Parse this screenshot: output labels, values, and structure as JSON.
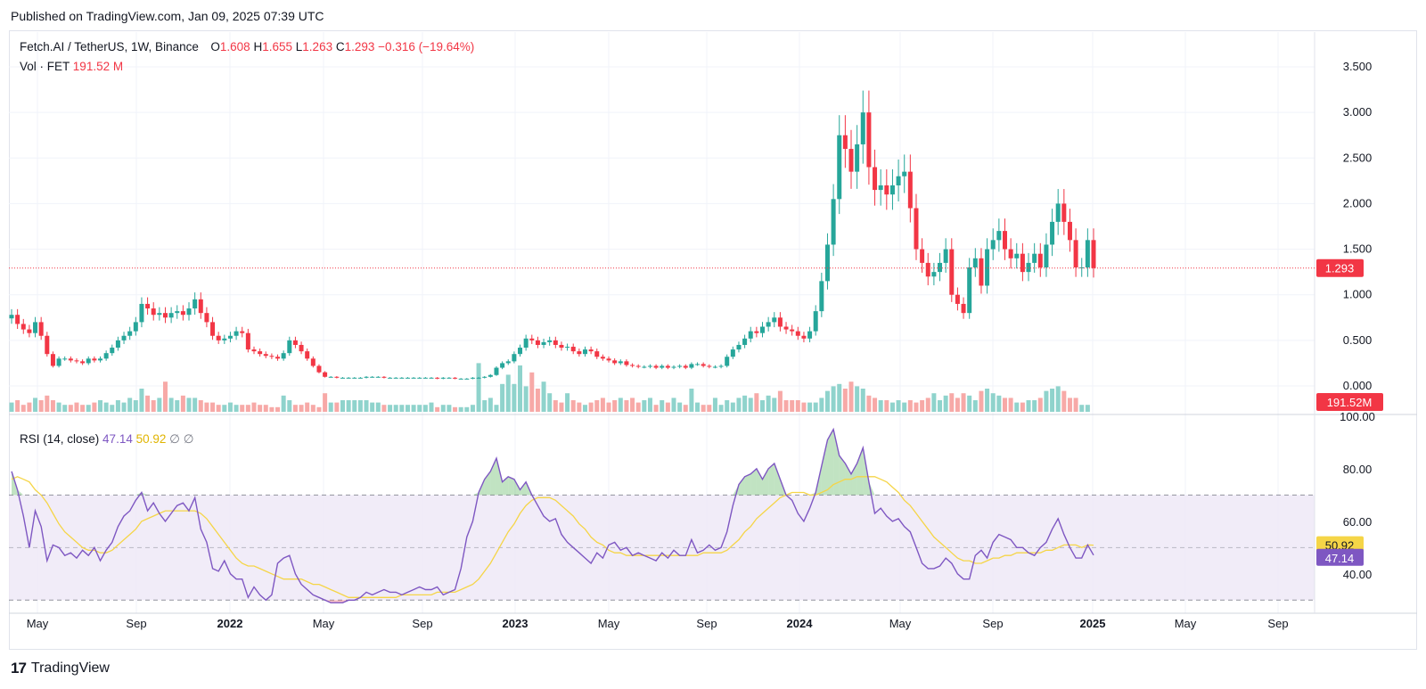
{
  "header": {
    "published": "Published on TradingView.com, Jan 09, 2025 07:39 UTC"
  },
  "legend": {
    "symbol": "Fetch.AI / TetherUS, 1W, Binance",
    "o_label": "O",
    "o": "1.608",
    "h_label": "H",
    "h": "1.655",
    "l_label": "L",
    "l": "1.263",
    "c_label": "C",
    "c": "1.293",
    "change": "−0.316 (−19.64%)",
    "vol_label": "Vol · FET",
    "vol": "191.52 M",
    "rsi_label": "RSI (14, close)",
    "rsi": "47.14",
    "rsi_ma": "50.92",
    "rsi_x1": "∅",
    "rsi_x2": "∅"
  },
  "footer": {
    "brand": "TradingView"
  },
  "colors": {
    "up": "#26a69a",
    "down": "#f23645",
    "up_vol": "#8fd3cc",
    "down_vol": "#f7a9a7",
    "rsi": "#7e57c2",
    "rsi_ma": "#f5d547",
    "band": "#ede7f6"
  },
  "chart_data": [
    {
      "type": "candlestick",
      "title": "Fetch.AI / TetherUS, 1W, Binance",
      "x_start": "2021-03-29",
      "interval_days": 7,
      "ylim": [
        0,
        3.5
      ],
      "y_ticks": [
        "3.500",
        "3.000",
        "2.500",
        "2.000",
        "1.500",
        "1.000",
        "0.500",
        "0.000"
      ],
      "x_ticks": [
        "May",
        "Sep",
        "2022",
        "May",
        "Sep",
        "2023",
        "May",
        "Sep",
        "2024",
        "May",
        "Sep",
        "2025",
        "May",
        "Sep"
      ],
      "last_price": "1.293",
      "close": [
        0.78,
        0.68,
        0.62,
        0.58,
        0.7,
        0.55,
        0.35,
        0.22,
        0.3,
        0.3,
        0.28,
        0.27,
        0.25,
        0.3,
        0.28,
        0.3,
        0.36,
        0.42,
        0.5,
        0.55,
        0.6,
        0.7,
        0.9,
        0.85,
        0.78,
        0.8,
        0.75,
        0.8,
        0.82,
        0.78,
        0.85,
        0.95,
        0.8,
        0.7,
        0.55,
        0.5,
        0.52,
        0.55,
        0.6,
        0.58,
        0.4,
        0.38,
        0.35,
        0.33,
        0.32,
        0.3,
        0.36,
        0.5,
        0.45,
        0.38,
        0.3,
        0.22,
        0.15,
        0.1,
        0.1,
        0.09,
        0.09,
        0.09,
        0.09,
        0.09,
        0.1,
        0.1,
        0.1,
        0.09,
        0.09,
        0.09,
        0.09,
        0.09,
        0.09,
        0.09,
        0.09,
        0.09,
        0.08,
        0.09,
        0.09,
        0.08,
        0.08,
        0.08,
        0.09,
        0.09,
        0.1,
        0.12,
        0.2,
        0.25,
        0.27,
        0.35,
        0.42,
        0.52,
        0.5,
        0.45,
        0.48,
        0.5,
        0.45,
        0.42,
        0.43,
        0.38,
        0.35,
        0.4,
        0.38,
        0.32,
        0.3,
        0.28,
        0.25,
        0.27,
        0.23,
        0.22,
        0.21,
        0.21,
        0.22,
        0.2,
        0.22,
        0.2,
        0.21,
        0.22,
        0.2,
        0.24,
        0.24,
        0.22,
        0.21,
        0.21,
        0.22,
        0.32,
        0.4,
        0.45,
        0.52,
        0.6,
        0.58,
        0.65,
        0.7,
        0.75,
        0.65,
        0.62,
        0.6,
        0.55,
        0.52,
        0.6,
        0.82,
        1.15,
        1.55,
        2.05,
        2.75,
        2.6,
        2.35,
        2.65,
        3.0,
        2.4,
        2.15,
        2.2,
        2.1,
        2.2,
        2.3,
        2.35,
        1.95,
        1.5,
        1.35,
        1.2,
        1.25,
        1.35,
        1.5,
        1.0,
        0.9,
        0.8,
        1.3,
        1.4,
        1.1,
        1.5,
        1.6,
        1.7,
        1.5,
        1.4,
        1.45,
        1.25,
        1.35,
        1.45,
        1.3,
        1.55,
        1.8,
        2.0,
        1.8,
        1.6,
        1.3,
        1.3,
        1.6,
        1.293
      ]
    },
    {
      "type": "bar",
      "title": "Vol · FET",
      "last_value": "191.52M",
      "values": [
        0.4,
        0.5,
        0.3,
        0.4,
        0.6,
        0.5,
        0.7,
        0.5,
        0.4,
        0.3,
        0.3,
        0.4,
        0.3,
        0.3,
        0.4,
        0.5,
        0.4,
        0.3,
        0.5,
        0.4,
        0.6,
        0.5,
        1.0,
        0.7,
        0.5,
        0.6,
        1.3,
        0.6,
        0.5,
        0.7,
        0.6,
        0.6,
        0.5,
        0.4,
        0.4,
        0.3,
        0.3,
        0.4,
        0.3,
        0.3,
        0.3,
        0.4,
        0.3,
        0.3,
        0.2,
        0.2,
        0.7,
        0.5,
        0.3,
        0.3,
        0.4,
        0.3,
        0.2,
        0.8,
        0.4,
        0.4,
        0.5,
        0.5,
        0.5,
        0.5,
        0.5,
        0.4,
        0.4,
        0.3,
        0.3,
        0.3,
        0.3,
        0.3,
        0.3,
        0.3,
        0.3,
        0.4,
        0.2,
        0.3,
        0.3,
        0.2,
        0.2,
        0.2,
        0.3,
        2.1,
        0.5,
        0.6,
        0.3,
        1.2,
        1.6,
        1.2,
        2.0,
        1.1,
        1.7,
        1.0,
        1.3,
        0.8,
        0.5,
        0.4,
        0.8,
        0.5,
        0.4,
        0.3,
        0.4,
        0.5,
        0.6,
        0.4,
        0.5,
        0.6,
        0.5,
        0.6,
        0.4,
        0.5,
        0.6,
        0.3,
        0.5,
        0.4,
        0.6,
        0.4,
        0.3,
        1.0,
        0.4,
        0.3,
        0.3,
        0.6,
        0.3,
        0.5,
        0.4,
        0.6,
        0.7,
        0.6,
        0.8,
        0.5,
        0.7,
        0.6,
        0.9,
        0.5,
        0.5,
        0.5,
        0.4,
        0.4,
        0.4,
        0.6,
        0.9,
        1.1,
        1.2,
        1.0,
        1.3,
        1.1,
        1.0,
        0.7,
        0.6,
        0.5,
        0.5,
        0.4,
        0.5,
        0.4,
        0.5,
        0.4,
        0.5,
        0.6,
        0.8,
        0.5,
        0.7,
        0.8,
        0.6,
        0.8,
        0.7,
        0.5,
        0.9,
        1.0,
        0.8,
        0.7,
        0.6,
        0.6,
        0.4,
        0.4,
        0.5,
        0.5,
        0.6,
        0.9,
        1.0,
        1.1,
        0.9,
        0.6,
        0.6,
        0.3,
        0.3
      ]
    },
    {
      "type": "line",
      "title": "RSI (14, close)",
      "ylim": [
        25,
        100
      ],
      "y_ticks": [
        "100.00",
        "80.00",
        "60.00",
        "40.00"
      ],
      "bands": [
        30,
        50,
        70
      ],
      "last_values": {
        "rsi": "47.14",
        "rsi_ma": "50.92"
      },
      "series": [
        {
          "name": "RSI",
          "values": [
            79,
            72,
            62,
            50,
            64,
            58,
            45,
            51,
            50,
            47,
            48,
            46,
            49,
            47,
            50,
            45,
            49,
            52,
            58,
            62,
            64,
            68,
            71,
            64,
            67,
            63,
            60,
            63,
            66,
            67,
            64,
            69,
            57,
            52,
            42,
            41,
            45,
            40,
            38,
            38,
            31,
            35,
            32,
            30,
            32,
            44,
            46,
            47,
            40,
            36,
            34,
            32,
            31,
            30,
            29,
            29,
            29,
            30,
            30,
            31,
            33,
            32,
            33,
            34,
            33,
            33,
            32,
            33,
            34,
            35,
            34,
            34,
            35,
            32,
            33,
            34,
            42,
            54,
            60,
            71,
            76,
            79,
            84,
            75,
            77,
            76,
            72,
            75,
            70,
            66,
            62,
            60,
            61,
            55,
            52,
            50,
            48,
            46,
            44,
            48,
            46,
            51,
            52,
            49,
            50,
            47,
            48,
            47,
            46,
            45,
            48,
            46,
            49,
            47,
            47,
            53,
            48,
            49,
            51,
            49,
            50,
            56,
            66,
            74,
            77,
            78,
            80,
            76,
            80,
            82,
            76,
            70,
            68,
            63,
            60,
            65,
            71,
            81,
            91,
            95,
            85,
            82,
            78,
            82,
            88,
            75,
            63,
            65,
            62,
            60,
            61,
            58,
            56,
            50,
            44,
            42,
            42,
            43,
            46,
            44,
            40,
            38,
            38,
            47,
            49,
            46,
            52,
            55,
            54,
            53,
            50,
            50,
            48,
            47,
            50,
            52,
            57,
            61,
            55,
            50,
            46,
            46,
            51,
            47.14
          ]
        },
        {
          "name": "RSI MA",
          "values": [
            76,
            77,
            76,
            75,
            72,
            70,
            67,
            63,
            59,
            56,
            54,
            52,
            50,
            49,
            49,
            48,
            48,
            49,
            51,
            53,
            55,
            57,
            60,
            61,
            62,
            63,
            64,
            64,
            64,
            64,
            64,
            64,
            63,
            61,
            58,
            55,
            52,
            49,
            46,
            44,
            43,
            43,
            42,
            41,
            40,
            39,
            38,
            38,
            38,
            38,
            37,
            36,
            36,
            35,
            34,
            33,
            32,
            31,
            31,
            31,
            31,
            31,
            31,
            31,
            31,
            31,
            32,
            32,
            32,
            32,
            32,
            32,
            33,
            33,
            33,
            33,
            34,
            35,
            36,
            38,
            41,
            44,
            48,
            52,
            56,
            59,
            63,
            66,
            68,
            69,
            69,
            69,
            68,
            66,
            64,
            62,
            59,
            57,
            54,
            52,
            51,
            49,
            48,
            48,
            47,
            47,
            47,
            47,
            47,
            47,
            47,
            47,
            47,
            47,
            47,
            47,
            47,
            48,
            48,
            48,
            48,
            49,
            51,
            53,
            56,
            58,
            61,
            63,
            65,
            67,
            69,
            70,
            71,
            71,
            71,
            70,
            70,
            71,
            72,
            74,
            75,
            76,
            76,
            77,
            77,
            77,
            77,
            76,
            75,
            73,
            71,
            68,
            66,
            63,
            60,
            57,
            54,
            52,
            50,
            48,
            46,
            45,
            45,
            44,
            44,
            45,
            46,
            46,
            47,
            47,
            48,
            48,
            48,
            48,
            48,
            49,
            49,
            50,
            51,
            51,
            51,
            50,
            51,
            50.92
          ]
        }
      ]
    }
  ]
}
